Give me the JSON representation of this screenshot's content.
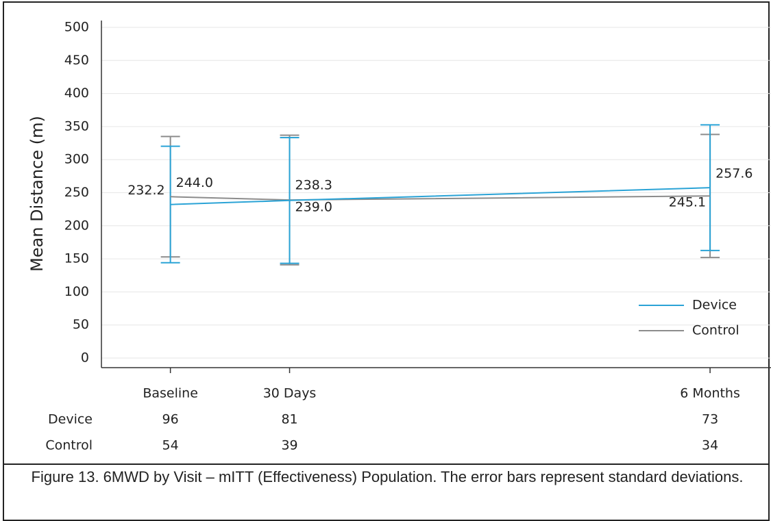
{
  "chart_data": {
    "type": "line",
    "ylabel": "Mean Distance (m)",
    "categories": [
      "Baseline",
      "30 Days",
      "6 Months"
    ],
    "series": [
      {
        "name": "Device",
        "color": "#2aa3d6",
        "values": [
          232.2,
          238.3,
          257.6
        ],
        "value_labels": [
          "232.2",
          "238.3",
          "257.6"
        ],
        "errors": [
          88,
          95,
          95
        ]
      },
      {
        "name": "Control",
        "color": "#8c8c8c",
        "values": [
          244,
          239,
          245.1
        ],
        "value_labels": [
          "244.0",
          "239.0",
          "245.1"
        ],
        "errors": [
          91,
          98,
          93
        ]
      }
    ],
    "ylim": [
      0,
      500
    ],
    "yticks": [
      0,
      50,
      100,
      150,
      200,
      250,
      300,
      350,
      400,
      450,
      500
    ],
    "grid": true,
    "legend": "lower right",
    "counts": [
      {
        "name": "Device",
        "values": [
          96,
          81,
          73
        ]
      },
      {
        "name": "Control",
        "values": [
          54,
          39,
          34
        ]
      }
    ],
    "caption": "Figure 13. 6MWD by Visit – mITT (Effectiveness) Population. The error bars represent standard deviations."
  }
}
